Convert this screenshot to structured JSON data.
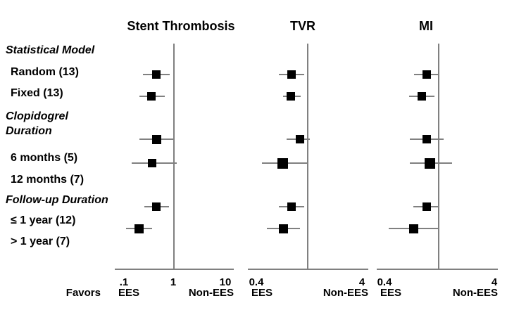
{
  "chart_data": {
    "type": "forest",
    "scale": "log",
    "favors_label": "Favors",
    "groups": [
      {
        "header_lines": [
          "Statistical Model"
        ],
        "items": [
          "Random (13)",
          "Fixed (13)"
        ]
      },
      {
        "header_lines": [
          "Clopidogrel",
          "Duration"
        ],
        "items": [
          "6 months (5)",
          "12 months (7)"
        ]
      },
      {
        "header_lines": [
          "Follow-up Duration"
        ],
        "items": [
          "≤ 1 year (12)",
          "> 1 year (7)"
        ]
      }
    ],
    "panels": [
      {
        "title": "Stent Thrombosis",
        "tick_values": [
          0.1,
          1,
          10
        ],
        "tick_labels": [
          ".1",
          "1",
          "10"
        ],
        "ref_value": 1,
        "favors_left": "EES",
        "favors_right": "Non-EES",
        "estimates": [
          {
            "row": "Random (13)",
            "est": 0.44,
            "lo": 0.24,
            "hi": 0.8
          },
          {
            "row": "Fixed (13)",
            "est": 0.35,
            "lo": 0.2,
            "hi": 0.64
          },
          {
            "row": "6 months (5)",
            "est": 0.44,
            "lo": 0.2,
            "hi": 0.97
          },
          {
            "row": "12 months (7)",
            "est": 0.36,
            "lo": 0.14,
            "hi": 1.1
          },
          {
            "row": "≤ 1 year (12)",
            "est": 0.44,
            "lo": 0.25,
            "hi": 0.78
          },
          {
            "row": "> 1 year (7)",
            "est": 0.2,
            "lo": 0.11,
            "hi": 0.36
          }
        ]
      },
      {
        "title": "TVR",
        "tick_values": [
          0.4,
          4
        ],
        "tick_labels": [
          "0.4",
          "4"
        ],
        "ref_value": 1,
        "favors_left": "EES",
        "favors_right": "Non-EES",
        "estimates": [
          {
            "row": "Random (13)",
            "est": 0.86,
            "lo": 0.65,
            "hi": 1.13
          },
          {
            "row": "Fixed (13)",
            "est": 0.85,
            "lo": 0.72,
            "hi": 1.05
          },
          {
            "row": "6 months (5)",
            "est": 1.04,
            "lo": 0.77,
            "hi": 1.29
          },
          {
            "row": "12 months (7)",
            "est": 0.71,
            "lo": 0.45,
            "hi": 1.23
          },
          {
            "row": "≤ 1 year (12)",
            "est": 0.86,
            "lo": 0.65,
            "hi": 1.13
          },
          {
            "row": "> 1 year (7)",
            "est": 0.72,
            "lo": 0.5,
            "hi": 1.04
          }
        ]
      },
      {
        "title": "MI",
        "tick_values": [
          0.4,
          4
        ],
        "tick_labels": [
          "0.4",
          "4"
        ],
        "ref_value": 1,
        "favors_left": "EES",
        "favors_right": "Non-EES",
        "estimates": [
          {
            "row": "Random (13)",
            "est": 0.97,
            "lo": 0.74,
            "hi": 1.25
          },
          {
            "row": "Fixed (13)",
            "est": 0.87,
            "lo": 0.67,
            "hi": 1.14
          },
          {
            "row": "6 months (5)",
            "est": 0.97,
            "lo": 0.68,
            "hi": 1.38
          },
          {
            "row": "12 months (7)",
            "est": 1.04,
            "lo": 0.68,
            "hi": 1.65
          },
          {
            "row": "≤ 1 year (12)",
            "est": 0.97,
            "lo": 0.73,
            "hi": 1.25
          },
          {
            "row": "> 1 year (7)",
            "est": 0.74,
            "lo": 0.44,
            "hi": 1.25
          }
        ]
      }
    ],
    "colors": {
      "marker": "#000000",
      "line": "#808080",
      "text": "#000000",
      "background": "#ffffff"
    }
  }
}
